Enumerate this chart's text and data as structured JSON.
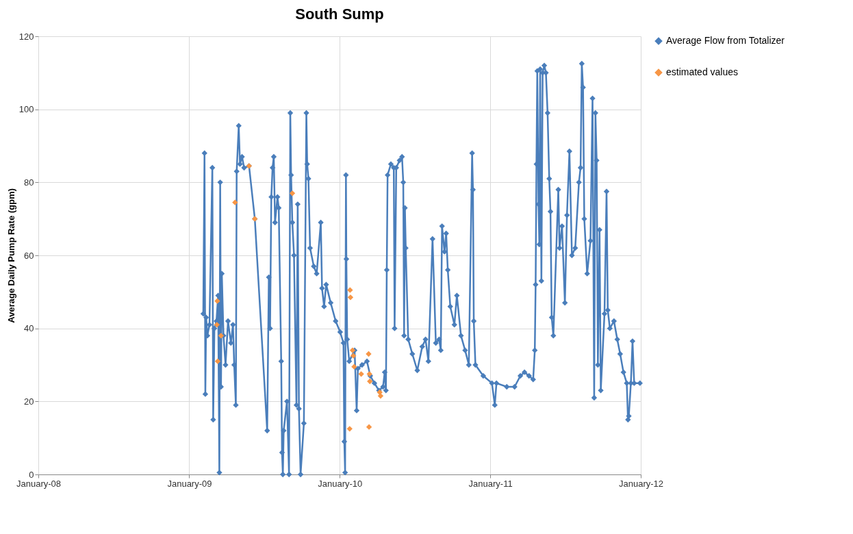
{
  "chart_data": {
    "type": "line",
    "title": "South Sump",
    "ylabel": "Average Daily Pump Rate (gpm)",
    "xlim": [
      "2008-01-01",
      "2012-01-01"
    ],
    "xticks": [
      {
        "value": "2008-01-01",
        "label": "January-08"
      },
      {
        "value": "2009-01-01",
        "label": "January-09"
      },
      {
        "value": "2010-01-01",
        "label": "January-10"
      },
      {
        "value": "2011-01-01",
        "label": "January-11"
      },
      {
        "value": "2012-01-01",
        "label": "January-12"
      }
    ],
    "ylim": [
      0,
      120
    ],
    "yticks": [
      0,
      20,
      40,
      60,
      80,
      100,
      120
    ],
    "grid": true,
    "legend": "right",
    "marker": "diamond",
    "line_style": "solid",
    "series": [
      {
        "name": "Average Flow from Totalizer",
        "color": "#4a7ebb",
        "type": "line",
        "x": [
          "2009-02-04",
          "2009-02-07",
          "2009-02-09",
          "2009-02-11",
          "2009-02-14",
          "2009-02-19",
          "2009-02-26",
          "2009-02-28",
          "2009-03-03",
          "2009-03-08",
          "2009-03-12",
          "2009-03-15",
          "2009-03-17",
          "2009-03-19",
          "2009-03-21",
          "2009-03-25",
          "2009-03-30",
          "2009-04-05",
          "2009-04-12",
          "2009-04-17",
          "2009-04-20",
          "2009-04-24",
          "2009-04-26",
          "2009-05-01",
          "2009-05-04",
          "2009-05-09",
          "2009-05-14",
          "2009-05-26",
          "2009-06-09",
          "2009-07-09",
          "2009-07-13",
          "2009-07-16",
          "2009-07-19",
          "2009-07-22",
          "2009-07-25",
          "2009-07-28",
          "2009-08-03",
          "2009-08-06",
          "2009-08-12",
          "2009-08-14",
          "2009-08-16",
          "2009-08-18",
          "2009-08-26",
          "2009-08-31",
          "2009-09-03",
          "2009-09-05",
          "2009-09-08",
          "2009-09-12",
          "2009-09-18",
          "2009-09-21",
          "2009-09-24",
          "2009-09-28",
          "2009-10-06",
          "2009-10-12",
          "2009-10-14",
          "2009-10-17",
          "2009-10-21",
          "2009-10-30",
          "2009-11-06",
          "2009-11-16",
          "2009-11-19",
          "2009-11-24",
          "2009-11-29",
          "2009-12-10",
          "2009-12-22",
          "2010-01-02",
          "2010-01-10",
          "2010-01-12",
          "2010-01-14",
          "2010-01-16",
          "2010-01-17",
          "2010-01-19",
          "2010-01-24",
          "2010-02-06",
          "2010-02-11",
          "2010-02-14",
          "2010-02-24",
          "2010-03-08",
          "2010-03-16",
          "2010-03-26",
          "2010-04-06",
          "2010-04-16",
          "2010-04-20",
          "2010-04-23",
          "2010-04-25",
          "2010-04-27",
          "2010-05-05",
          "2010-05-12",
          "2010-05-14",
          "2010-05-18",
          "2010-05-26",
          "2010-06-01",
          "2010-06-04",
          "2010-06-06",
          "2010-06-08",
          "2010-06-10",
          "2010-06-16",
          "2010-06-26",
          "2010-07-08",
          "2010-07-20",
          "2010-07-28",
          "2010-08-04",
          "2010-08-14",
          "2010-08-22",
          "2010-08-30",
          "2010-09-03",
          "2010-09-06",
          "2010-09-12",
          "2010-09-16",
          "2010-09-20",
          "2010-09-26",
          "2010-10-06",
          "2010-10-12",
          "2010-10-22",
          "2010-11-01",
          "2010-11-10",
          "2010-11-18",
          "2010-11-20",
          "2010-11-22",
          "2010-11-26",
          "2010-12-15",
          "2011-01-05",
          "2011-01-12",
          "2011-01-16",
          "2011-02-10",
          "2011-03-01",
          "2011-03-15",
          "2011-03-25",
          "2011-04-05",
          "2011-04-15",
          "2011-04-19",
          "2011-04-21",
          "2011-04-23",
          "2011-04-25",
          "2011-04-28",
          "2011-04-30",
          "2011-05-02",
          "2011-05-05",
          "2011-05-08",
          "2011-05-12",
          "2011-05-16",
          "2011-05-20",
          "2011-05-24",
          "2011-05-27",
          "2011-05-30",
          "2011-06-03",
          "2011-06-15",
          "2011-06-18",
          "2011-06-24",
          "2011-07-01",
          "2011-07-06",
          "2011-07-12",
          "2011-07-18",
          "2011-07-26",
          "2011-08-04",
          "2011-08-08",
          "2011-08-11",
          "2011-08-14",
          "2011-08-17",
          "2011-08-24",
          "2011-09-01",
          "2011-09-06",
          "2011-09-10",
          "2011-09-13",
          "2011-09-16",
          "2011-09-19",
          "2011-09-23",
          "2011-09-26",
          "2011-10-05",
          "2011-10-10",
          "2011-10-13",
          "2011-10-18",
          "2011-10-28",
          "2011-11-05",
          "2011-11-12",
          "2011-11-20",
          "2011-11-28",
          "2011-12-01",
          "2011-12-03",
          "2011-12-08",
          "2011-12-12",
          "2011-12-16",
          "2011-12-30"
        ],
        "values": [
          44,
          88,
          22,
          43,
          38,
          41,
          84,
          15,
          40,
          42,
          49,
          0.5,
          80,
          24,
          55,
          38,
          30,
          42,
          36,
          41,
          30,
          19,
          83,
          95.5,
          85,
          87,
          84,
          84.5,
          70,
          12,
          54,
          40,
          76,
          84,
          87,
          69,
          76,
          73,
          31,
          6,
          0,
          12,
          20,
          0,
          99,
          82,
          69,
          60,
          19,
          74,
          18,
          0,
          14,
          99,
          85,
          81,
          62,
          57,
          55,
          69,
          51,
          46,
          52,
          47,
          42,
          39,
          36,
          9,
          0.5,
          82,
          59,
          37,
          31,
          34,
          17.5,
          29,
          30,
          31,
          27,
          25,
          23,
          24,
          28,
          23,
          56,
          82,
          85,
          84,
          40,
          84,
          86,
          87,
          80,
          38,
          73,
          62,
          37,
          33,
          28.5,
          35,
          37,
          31,
          64.5,
          36,
          37,
          34,
          68,
          61,
          66,
          56,
          46,
          41,
          49,
          38,
          34,
          30,
          88,
          78,
          42,
          30,
          27,
          25,
          19,
          25,
          24,
          24,
          27,
          28,
          27,
          26,
          34,
          52,
          85,
          110.5,
          74,
          63,
          111,
          53,
          110,
          112,
          110,
          99,
          81,
          72,
          43,
          38,
          78,
          62,
          68,
          47,
          71,
          88.5,
          60,
          62,
          80,
          84,
          112.5,
          106,
          70,
          55,
          64,
          103,
          21,
          99,
          86,
          30,
          67,
          23,
          44,
          77.5,
          45,
          40,
          42,
          37,
          33,
          28,
          25,
          15,
          16,
          25,
          36.5,
          25,
          25
        ]
      },
      {
        "name": "estimated values",
        "color": "#f79646",
        "type": "scatter",
        "x": [
          "2009-03-10",
          "2009-03-09",
          "2009-03-11",
          "2009-03-19",
          "2009-04-22",
          "2009-05-26",
          "2009-06-09",
          "2009-09-08",
          "2010-01-26",
          "2010-01-27",
          "2010-01-25",
          "2010-02-01",
          "2010-02-03",
          "2010-02-05",
          "2010-02-22",
          "2010-03-12",
          "2010-03-13",
          "2010-03-14",
          "2010-03-15",
          "2010-04-08",
          "2010-04-10"
        ],
        "values": [
          47.5,
          41,
          31,
          38,
          74.5,
          84.5,
          70,
          77,
          50.5,
          48.5,
          12.5,
          34,
          32.5,
          29.5,
          27.5,
          33,
          13,
          27.5,
          25.5,
          22.5,
          21.5
        ]
      }
    ]
  }
}
